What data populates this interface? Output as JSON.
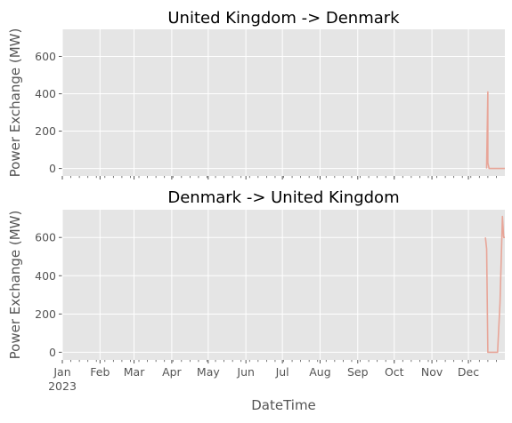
{
  "chart_data": [
    {
      "type": "line",
      "title": "United Kingdom -> Denmark",
      "xlabel": "",
      "ylabel": "Power Exchange (MW)",
      "ylim": [
        -40,
        745
      ],
      "yticks": [
        0,
        200,
        400,
        600
      ],
      "xlim": [
        "2023-01-01",
        "2023-12-31"
      ],
      "x_tick_labels_visible": false,
      "grid": true,
      "series": [
        {
          "color": "#e8a598",
          "points": [
            {
              "x": "2023-12-16",
              "y": 0
            },
            {
              "x": "2023-12-16",
              "y": 20
            },
            {
              "x": "2023-12-17",
              "y": 410
            },
            {
              "x": "2023-12-17",
              "y": 30
            },
            {
              "x": "2023-12-18",
              "y": 0
            },
            {
              "x": "2023-12-31",
              "y": 0
            }
          ]
        }
      ]
    },
    {
      "type": "line",
      "title": "Denmark -> United Kingdom",
      "xlabel": "DateTime",
      "ylabel": "Power Exchange (MW)",
      "ylim": [
        -40,
        745
      ],
      "yticks": [
        0,
        200,
        400,
        600
      ],
      "xlim": [
        "2023-01-01",
        "2023-12-31"
      ],
      "x_tick_labels_visible": true,
      "year_label": "2023",
      "grid": true,
      "series": [
        {
          "color": "#e8a598",
          "points": [
            {
              "x": "2023-12-15",
              "y": 600
            },
            {
              "x": "2023-12-16",
              "y": 540
            },
            {
              "x": "2023-12-17",
              "y": 0
            },
            {
              "x": "2023-12-25",
              "y": 0
            },
            {
              "x": "2023-12-27",
              "y": 260
            },
            {
              "x": "2023-12-29",
              "y": 710
            },
            {
              "x": "2023-12-30",
              "y": 600
            },
            {
              "x": "2023-12-31",
              "y": 600
            }
          ]
        }
      ]
    }
  ],
  "x_ticks": [
    {
      "date": "2023-01-01",
      "label": "Jan"
    },
    {
      "date": "2023-02-01",
      "label": "Feb"
    },
    {
      "date": "2023-03-01",
      "label": "Mar"
    },
    {
      "date": "2023-04-01",
      "label": "Apr"
    },
    {
      "date": "2023-05-01",
      "label": "May"
    },
    {
      "date": "2023-06-01",
      "label": "Jun"
    },
    {
      "date": "2023-07-01",
      "label": "Jul"
    },
    {
      "date": "2023-08-01",
      "label": "Aug"
    },
    {
      "date": "2023-09-01",
      "label": "Sep"
    },
    {
      "date": "2023-10-01",
      "label": "Oct"
    },
    {
      "date": "2023-11-01",
      "label": "Nov"
    },
    {
      "date": "2023-12-01",
      "label": "Dec"
    }
  ],
  "colors": {
    "panel_background": "#e5e5e5",
    "grid": "#ffffff",
    "line": "#e8a598",
    "text": "#555555",
    "title": "#000000"
  }
}
